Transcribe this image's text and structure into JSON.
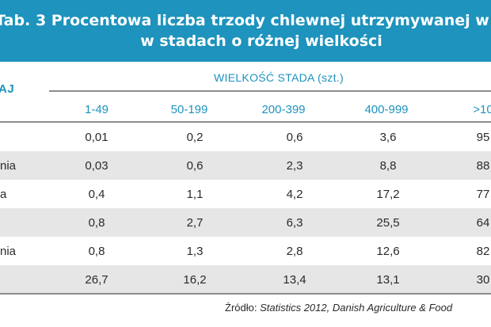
{
  "table": {
    "title_line1": "Tab. 3 Procentowa liczba trzody chlewnej utrzymywanej w",
    "title_line2": "w stadach o różnej wielkości",
    "row_header": "AJ",
    "group_header": "WIELKOŚĆ STADA (szt.)",
    "columns": [
      "1-49",
      "50-199",
      "200-399",
      "400-999",
      ">10"
    ],
    "rows": [
      {
        "label": "",
        "values": [
          "0,01",
          "0,2",
          "0,6",
          "3,6",
          "95"
        ]
      },
      {
        "label": "nia",
        "values": [
          "0,03",
          "0,6",
          "2,3",
          "8,8",
          "88"
        ]
      },
      {
        "label": "a",
        "values": [
          "0,4",
          "1,1",
          "4,2",
          "17,2",
          "77"
        ]
      },
      {
        "label": "",
        "values": [
          "0,8",
          "2,7",
          "6,3",
          "25,5",
          "64"
        ]
      },
      {
        "label": "nia",
        "values": [
          "0,8",
          "1,3",
          "2,8",
          "12,6",
          "82"
        ]
      },
      {
        "label": "",
        "values": [
          "26,7",
          "16,2",
          "13,4",
          "13,1",
          "30"
        ]
      }
    ],
    "source_prefix": "Źródło: ",
    "source_text": "Statistics 2012, Danish Agriculture & Food"
  },
  "colors": {
    "header_blue": "#1d93bd",
    "row_shade": "#e6e6e6",
    "rule": "#8d8d8d"
  }
}
